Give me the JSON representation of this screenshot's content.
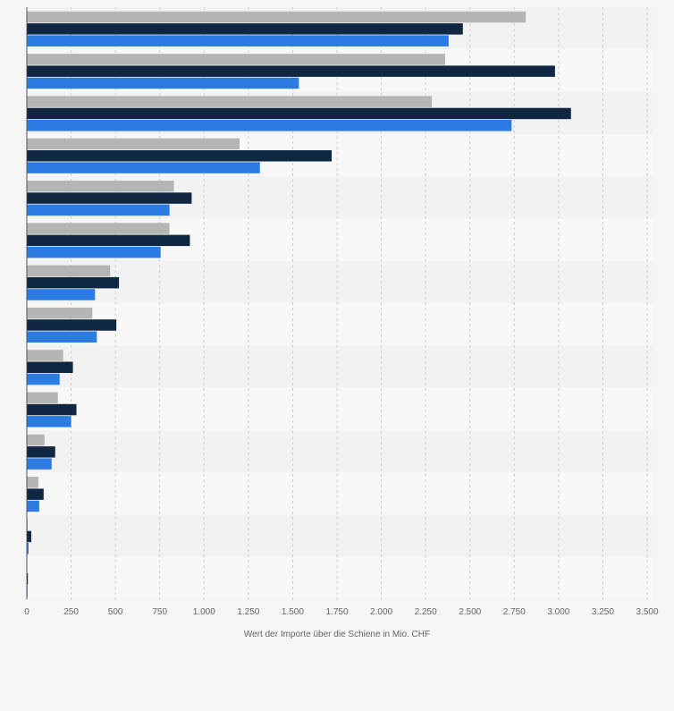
{
  "chart_data": {
    "type": "bar",
    "orientation": "horizontal",
    "title": "",
    "xlabel": "Wert der Importe über die Schiene in Mio. CHF",
    "ylabel": "",
    "xlim": [
      0,
      3500
    ],
    "x_ticks": [
      0,
      250,
      500,
      750,
      1000,
      1250,
      1500,
      1750,
      2000,
      2250,
      2500,
      2750,
      3000,
      3250,
      3500
    ],
    "x_tick_labels": [
      "0",
      "250",
      "500",
      "750",
      "1.000",
      "1.250",
      "1.500",
      "1.750",
      "2.000",
      "2.250",
      "2.500",
      "2.750",
      "3.000",
      "3.250",
      "3.500"
    ],
    "categories": [
      "",
      "",
      "",
      "",
      "",
      "",
      "",
      "",
      "",
      "",
      "",
      "",
      "",
      ""
    ],
    "grid": true,
    "legend": "none",
    "series": [
      {
        "color": "#b5b5b5",
        "values": [
          2815,
          2360,
          2285,
          1200,
          830,
          805,
          470,
          370,
          205,
          175,
          100,
          65,
          5,
          2
        ]
      },
      {
        "color": "#0f2740",
        "values": [
          2460,
          2980,
          3070,
          1720,
          930,
          920,
          520,
          505,
          260,
          280,
          160,
          95,
          25,
          6
        ]
      },
      {
        "color": "#2b7be2",
        "values": [
          2380,
          1535,
          2735,
          1315,
          805,
          755,
          385,
          395,
          185,
          250,
          140,
          70,
          10,
          4
        ]
      }
    ]
  }
}
